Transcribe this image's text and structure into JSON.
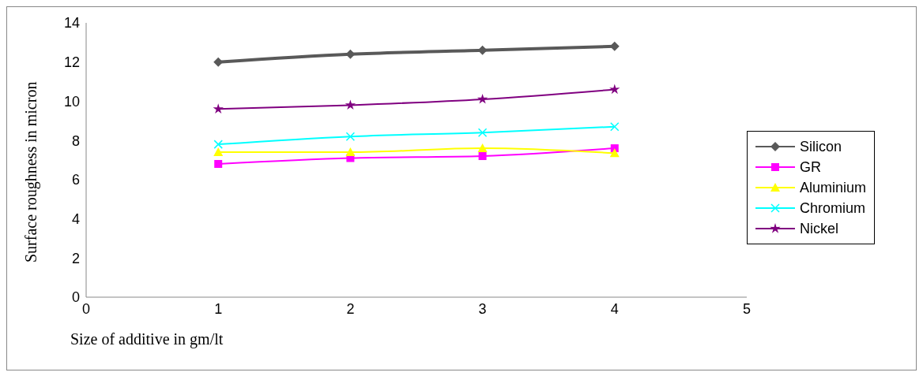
{
  "chart_data": {
    "type": "line",
    "xlabel": "Size of  additive  in gm/lt",
    "ylabel": "Surface roughness  in micron",
    "x": [
      1,
      2,
      3,
      4
    ],
    "series": [
      {
        "name": "Silicon",
        "color": "#595959",
        "marker": "diamond",
        "values": [
          12,
          12.4,
          12.6,
          12.8
        ]
      },
      {
        "name": "GR",
        "color": "#ff00ff",
        "marker": "square",
        "values": [
          6.8,
          7.1,
          7.2,
          7.6
        ]
      },
      {
        "name": "Aluminium",
        "color": "#ffff00",
        "marker": "triangle",
        "values": [
          7.4,
          7.4,
          7.6,
          7.35
        ]
      },
      {
        "name": "Chromium",
        "color": "#00ffff",
        "marker": "cross",
        "values": [
          7.8,
          8.2,
          8.4,
          8.7
        ]
      },
      {
        "name": "Nickel",
        "color": "#800080",
        "marker": "star",
        "values": [
          9.6,
          9.8,
          10.1,
          10.6
        ]
      }
    ],
    "xlim": [
      0,
      5
    ],
    "xticks": [
      0,
      1,
      2,
      3,
      4,
      5
    ],
    "ylim": [
      0,
      14
    ],
    "yticks": [
      0,
      2,
      4,
      6,
      8,
      10,
      12,
      14
    ],
    "grid": false,
    "legend": "right",
    "line_style": "solid"
  }
}
